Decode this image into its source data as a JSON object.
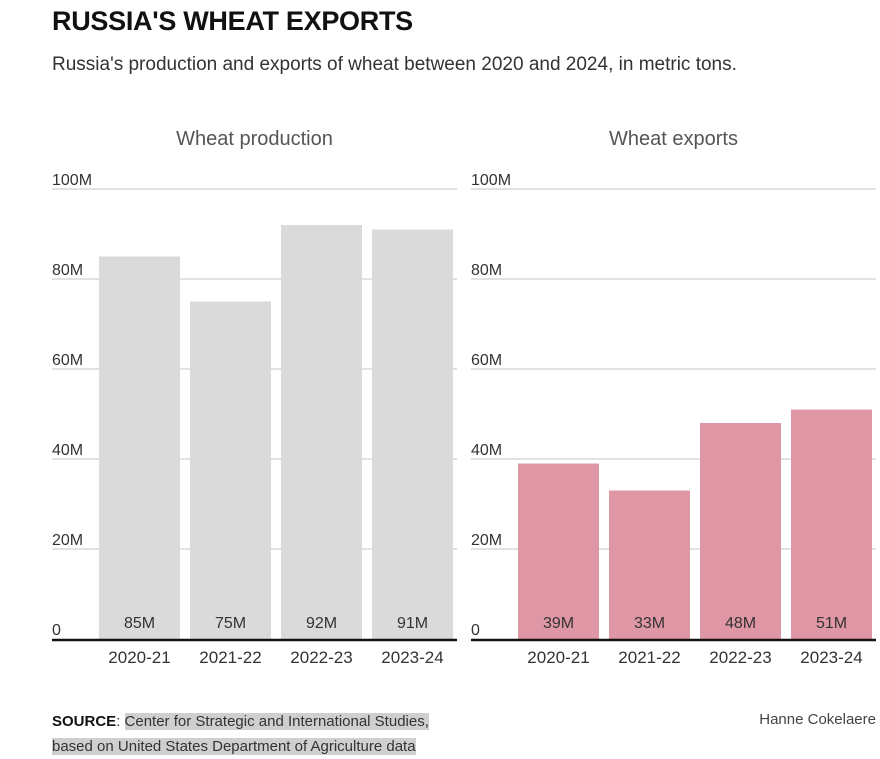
{
  "title": "RUSSIA'S WHEAT EXPORTS",
  "subtitle": "Russia's production and exports of wheat between 2020 and 2024, in metric tons.",
  "source_label": "SOURCE",
  "source_text": "Center for Strategic and International Studies,",
  "source_text_2": "based on United States Department of Agriculture data",
  "credit": "Hanne Cokelaere",
  "colors": {
    "production": "#dadada",
    "exports": "#df97a6",
    "grid": "#d9d9d9",
    "axis": "#111111"
  },
  "chart_data": [
    {
      "type": "bar",
      "title": "Wheat production",
      "categories": [
        "2020-21",
        "2021-22",
        "2022-23",
        "2023-24"
      ],
      "values": [
        85,
        75,
        92,
        91
      ],
      "data_labels": [
        "85M",
        "75M",
        "92M",
        "91M"
      ],
      "ylim": [
        0,
        100
      ],
      "yticks": [
        0,
        20,
        40,
        60,
        80,
        100
      ],
      "ytick_labels": [
        "0",
        "20M",
        "40M",
        "60M",
        "80M",
        "100M"
      ],
      "grid": true
    },
    {
      "type": "bar",
      "title": "Wheat exports",
      "categories": [
        "2020-21",
        "2021-22",
        "2022-23",
        "2023-24"
      ],
      "values": [
        39,
        33,
        48,
        51
      ],
      "data_labels": [
        "39M",
        "33M",
        "48M",
        "51M"
      ],
      "ylim": [
        0,
        100
      ],
      "yticks": [
        0,
        20,
        40,
        60,
        80,
        100
      ],
      "ytick_labels": [
        "0",
        "20M",
        "40M",
        "60M",
        "80M",
        "100M"
      ],
      "grid": true
    }
  ]
}
